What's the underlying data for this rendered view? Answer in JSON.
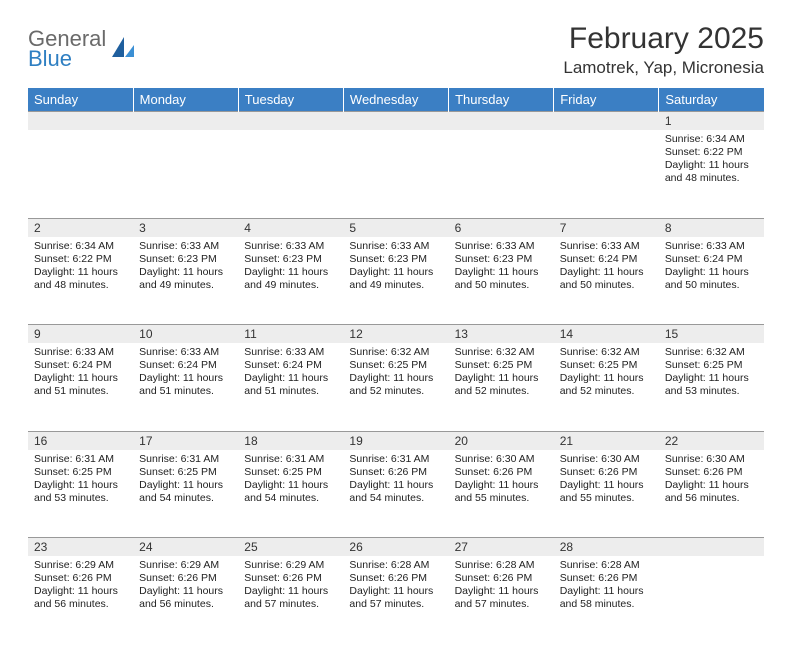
{
  "logo": {
    "line1": "General",
    "line2": "Blue"
  },
  "title": "February 2025",
  "location": "Lamotrek, Yap, Micronesia",
  "colors": {
    "header_bg": "#3b7fc4",
    "header_text": "#ffffff",
    "daynum_bg": "#ededed",
    "border": "#999999",
    "logo_gray": "#6a6a6a",
    "logo_blue": "#2f7fc2"
  },
  "dayNames": [
    "Sunday",
    "Monday",
    "Tuesday",
    "Wednesday",
    "Thursday",
    "Friday",
    "Saturday"
  ],
  "weeks": [
    [
      {
        "n": "",
        "sunrise": "",
        "sunset": "",
        "daylight": ""
      },
      {
        "n": "",
        "sunrise": "",
        "sunset": "",
        "daylight": ""
      },
      {
        "n": "",
        "sunrise": "",
        "sunset": "",
        "daylight": ""
      },
      {
        "n": "",
        "sunrise": "",
        "sunset": "",
        "daylight": ""
      },
      {
        "n": "",
        "sunrise": "",
        "sunset": "",
        "daylight": ""
      },
      {
        "n": "",
        "sunrise": "",
        "sunset": "",
        "daylight": ""
      },
      {
        "n": "1",
        "sunrise": "Sunrise: 6:34 AM",
        "sunset": "Sunset: 6:22 PM",
        "daylight": "Daylight: 11 hours and 48 minutes."
      }
    ],
    [
      {
        "n": "2",
        "sunrise": "Sunrise: 6:34 AM",
        "sunset": "Sunset: 6:22 PM",
        "daylight": "Daylight: 11 hours and 48 minutes."
      },
      {
        "n": "3",
        "sunrise": "Sunrise: 6:33 AM",
        "sunset": "Sunset: 6:23 PM",
        "daylight": "Daylight: 11 hours and 49 minutes."
      },
      {
        "n": "4",
        "sunrise": "Sunrise: 6:33 AM",
        "sunset": "Sunset: 6:23 PM",
        "daylight": "Daylight: 11 hours and 49 minutes."
      },
      {
        "n": "5",
        "sunrise": "Sunrise: 6:33 AM",
        "sunset": "Sunset: 6:23 PM",
        "daylight": "Daylight: 11 hours and 49 minutes."
      },
      {
        "n": "6",
        "sunrise": "Sunrise: 6:33 AM",
        "sunset": "Sunset: 6:23 PM",
        "daylight": "Daylight: 11 hours and 50 minutes."
      },
      {
        "n": "7",
        "sunrise": "Sunrise: 6:33 AM",
        "sunset": "Sunset: 6:24 PM",
        "daylight": "Daylight: 11 hours and 50 minutes."
      },
      {
        "n": "8",
        "sunrise": "Sunrise: 6:33 AM",
        "sunset": "Sunset: 6:24 PM",
        "daylight": "Daylight: 11 hours and 50 minutes."
      }
    ],
    [
      {
        "n": "9",
        "sunrise": "Sunrise: 6:33 AM",
        "sunset": "Sunset: 6:24 PM",
        "daylight": "Daylight: 11 hours and 51 minutes."
      },
      {
        "n": "10",
        "sunrise": "Sunrise: 6:33 AM",
        "sunset": "Sunset: 6:24 PM",
        "daylight": "Daylight: 11 hours and 51 minutes."
      },
      {
        "n": "11",
        "sunrise": "Sunrise: 6:33 AM",
        "sunset": "Sunset: 6:24 PM",
        "daylight": "Daylight: 11 hours and 51 minutes."
      },
      {
        "n": "12",
        "sunrise": "Sunrise: 6:32 AM",
        "sunset": "Sunset: 6:25 PM",
        "daylight": "Daylight: 11 hours and 52 minutes."
      },
      {
        "n": "13",
        "sunrise": "Sunrise: 6:32 AM",
        "sunset": "Sunset: 6:25 PM",
        "daylight": "Daylight: 11 hours and 52 minutes."
      },
      {
        "n": "14",
        "sunrise": "Sunrise: 6:32 AM",
        "sunset": "Sunset: 6:25 PM",
        "daylight": "Daylight: 11 hours and 52 minutes."
      },
      {
        "n": "15",
        "sunrise": "Sunrise: 6:32 AM",
        "sunset": "Sunset: 6:25 PM",
        "daylight": "Daylight: 11 hours and 53 minutes."
      }
    ],
    [
      {
        "n": "16",
        "sunrise": "Sunrise: 6:31 AM",
        "sunset": "Sunset: 6:25 PM",
        "daylight": "Daylight: 11 hours and 53 minutes."
      },
      {
        "n": "17",
        "sunrise": "Sunrise: 6:31 AM",
        "sunset": "Sunset: 6:25 PM",
        "daylight": "Daylight: 11 hours and 54 minutes."
      },
      {
        "n": "18",
        "sunrise": "Sunrise: 6:31 AM",
        "sunset": "Sunset: 6:25 PM",
        "daylight": "Daylight: 11 hours and 54 minutes."
      },
      {
        "n": "19",
        "sunrise": "Sunrise: 6:31 AM",
        "sunset": "Sunset: 6:26 PM",
        "daylight": "Daylight: 11 hours and 54 minutes."
      },
      {
        "n": "20",
        "sunrise": "Sunrise: 6:30 AM",
        "sunset": "Sunset: 6:26 PM",
        "daylight": "Daylight: 11 hours and 55 minutes."
      },
      {
        "n": "21",
        "sunrise": "Sunrise: 6:30 AM",
        "sunset": "Sunset: 6:26 PM",
        "daylight": "Daylight: 11 hours and 55 minutes."
      },
      {
        "n": "22",
        "sunrise": "Sunrise: 6:30 AM",
        "sunset": "Sunset: 6:26 PM",
        "daylight": "Daylight: 11 hours and 56 minutes."
      }
    ],
    [
      {
        "n": "23",
        "sunrise": "Sunrise: 6:29 AM",
        "sunset": "Sunset: 6:26 PM",
        "daylight": "Daylight: 11 hours and 56 minutes."
      },
      {
        "n": "24",
        "sunrise": "Sunrise: 6:29 AM",
        "sunset": "Sunset: 6:26 PM",
        "daylight": "Daylight: 11 hours and 56 minutes."
      },
      {
        "n": "25",
        "sunrise": "Sunrise: 6:29 AM",
        "sunset": "Sunset: 6:26 PM",
        "daylight": "Daylight: 11 hours and 57 minutes."
      },
      {
        "n": "26",
        "sunrise": "Sunrise: 6:28 AM",
        "sunset": "Sunset: 6:26 PM",
        "daylight": "Daylight: 11 hours and 57 minutes."
      },
      {
        "n": "27",
        "sunrise": "Sunrise: 6:28 AM",
        "sunset": "Sunset: 6:26 PM",
        "daylight": "Daylight: 11 hours and 57 minutes."
      },
      {
        "n": "28",
        "sunrise": "Sunrise: 6:28 AM",
        "sunset": "Sunset: 6:26 PM",
        "daylight": "Daylight: 11 hours and 58 minutes."
      },
      {
        "n": "",
        "sunrise": "",
        "sunset": "",
        "daylight": ""
      }
    ]
  ]
}
